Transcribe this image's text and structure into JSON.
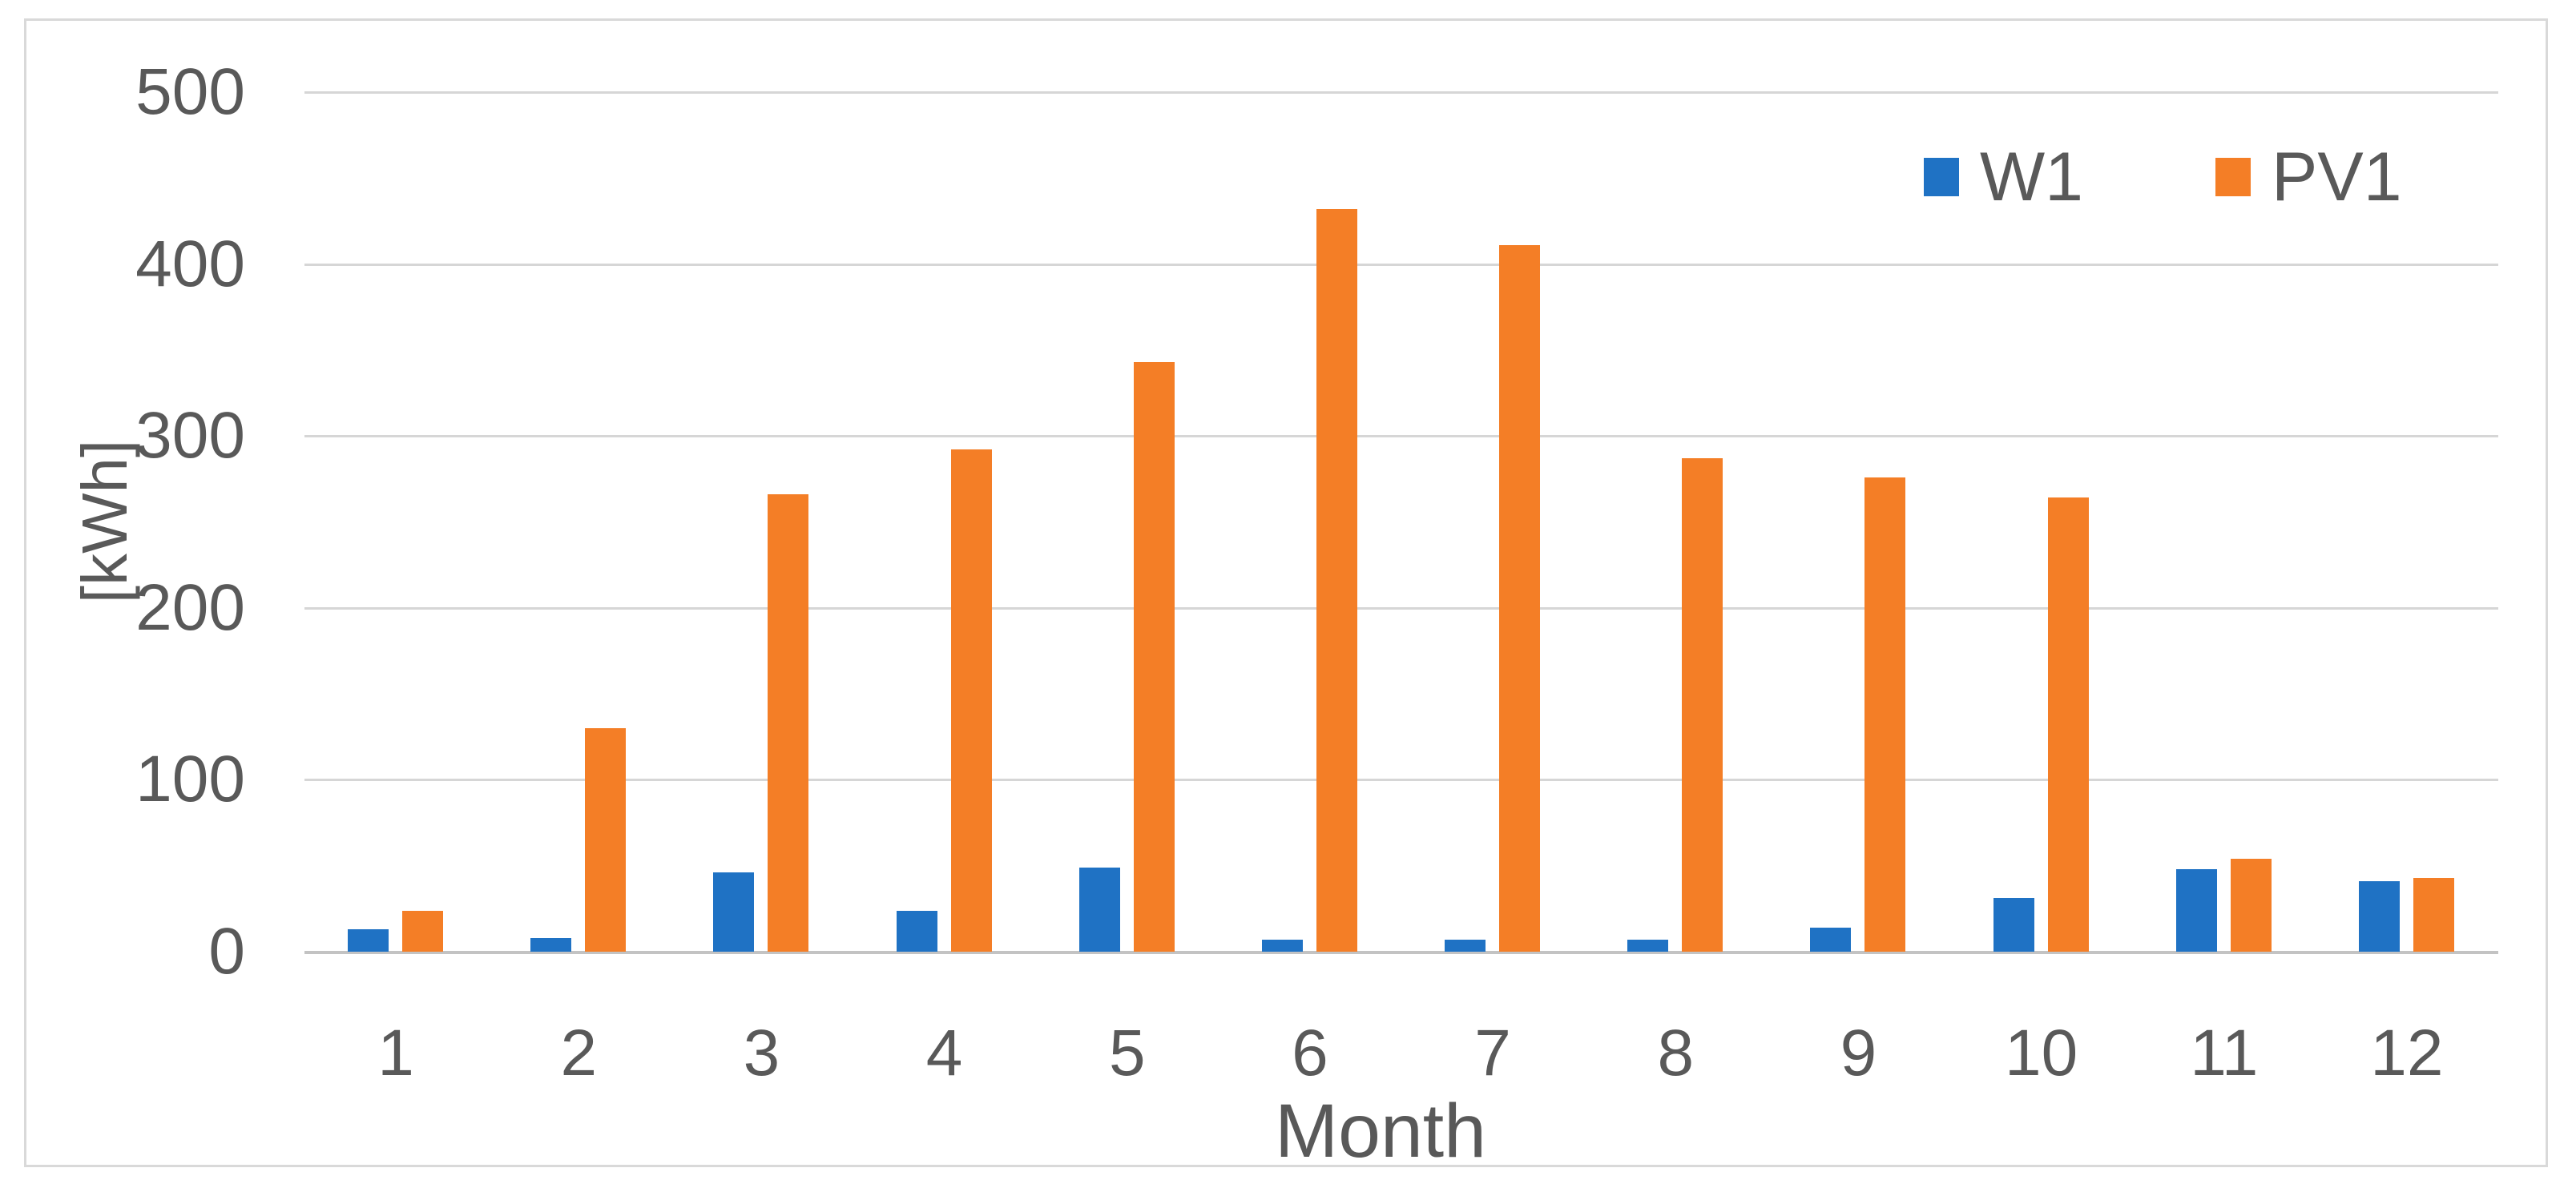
{
  "figure": {
    "background": "#ffffff",
    "frame_border_color": "#d9d9d9"
  },
  "chart_data": {
    "type": "bar",
    "title": "",
    "categories": [
      "1",
      "2",
      "3",
      "4",
      "5",
      "6",
      "7",
      "8",
      "9",
      "10",
      "11",
      "12"
    ],
    "series": [
      {
        "name": "W1",
        "color": "#1f72c4",
        "values": [
          13,
          8,
          46,
          24,
          49,
          7,
          7,
          7,
          14,
          31,
          48,
          41
        ]
      },
      {
        "name": "PV1",
        "color": "#f47e26",
        "values": [
          24,
          130,
          266,
          292,
          343,
          432,
          411,
          287,
          276,
          264,
          54,
          43
        ]
      }
    ],
    "xlabel": "Month",
    "ylabel": "[kWh]",
    "ylim": [
      0,
      500
    ],
    "yticks": [
      0,
      100,
      200,
      300,
      400,
      500
    ],
    "grid": "horizontal",
    "legend_position": "top-right",
    "colors": {
      "gridline": "#d6d6d6",
      "axis_line": "#c3c3c3",
      "text": "#595959"
    }
  }
}
